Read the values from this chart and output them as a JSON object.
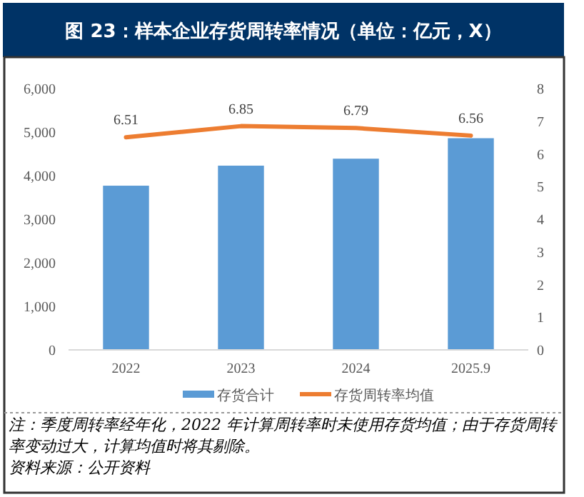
{
  "chart_data": {
    "type": "bar",
    "title": "图 23：样本企业存货周转率情况（单位：亿元，X）",
    "categories": [
      "2022",
      "2023",
      "2024",
      "2025.9"
    ],
    "series": [
      {
        "name": "存货合计",
        "color": "#5b9bd5",
        "values": [
          3770,
          4230,
          4390,
          4860
        ]
      },
      {
        "name": "存货周转率均值",
        "type": "line",
        "axis": "y2",
        "color": "#ed7d31",
        "values": [
          6.51,
          6.85,
          6.79,
          6.56
        ],
        "data_labels": true
      }
    ],
    "ylim": [
      0,
      6000
    ],
    "yticks": [
      {
        "value": 0,
        "label": "0"
      },
      {
        "value": 1000,
        "label": "1,000"
      },
      {
        "value": 2000,
        "label": "2,000"
      },
      {
        "value": 3000,
        "label": "3,000"
      },
      {
        "value": 4000,
        "label": "4,000"
      },
      {
        "value": 5000,
        "label": "5,000"
      },
      {
        "value": 6000,
        "label": "6,000"
      }
    ],
    "y2lim": [
      0,
      8
    ],
    "y2ticks": [
      0,
      1,
      2,
      3,
      4,
      5,
      6,
      7,
      8
    ],
    "legend": "bottom",
    "grid": false,
    "marker": "none",
    "annotations": [
      "注：季度周转率经年化，2022 年计算周转率时未使用存货均值；由于存货周转率变动过大，计算均值时将其剔除。",
      "资料来源：公开资料"
    ]
  }
}
